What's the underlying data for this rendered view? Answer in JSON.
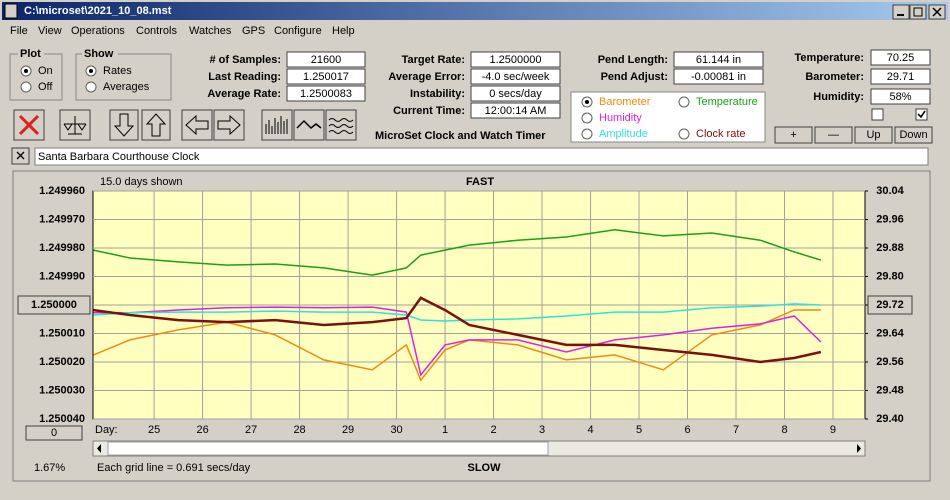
{
  "window": {
    "title": "C:\\microset\\2021_10_08.mst"
  },
  "menu": [
    "File",
    "View",
    "Operations",
    "Controls",
    "Watches",
    "GPS",
    "Configure",
    "Help"
  ],
  "plot": {
    "title": "Plot",
    "options": [
      "On",
      "Off"
    ],
    "selected": 0
  },
  "show": {
    "title": "Show",
    "options": [
      "Rates",
      "Averages"
    ],
    "selected": 0
  },
  "fields": [
    {
      "label": "# of Samples:",
      "value": "21600"
    },
    {
      "label": "Last Reading:",
      "value": "1.250017"
    },
    {
      "label": "Average Rate:",
      "value": "1.2500083"
    },
    {
      "label": "Target Rate:",
      "value": "1.2500000"
    },
    {
      "label": "Average Error:",
      "value": "-4.0 sec/week"
    },
    {
      "label": "Instability:",
      "value": "0 secs/day"
    },
    {
      "label": "Current Time:",
      "value": "12:00:14 AM"
    },
    {
      "label": "Pend Length:",
      "value": "61.144 in"
    },
    {
      "label": "Pend Adjust:",
      "value": "-0.00081 in"
    },
    {
      "label": "Temperature:",
      "value": "70.25"
    },
    {
      "label": "Barometer:",
      "value": "29.71"
    },
    {
      "label": "Humidity:",
      "value": "58%"
    }
  ],
  "app_name": "MicroSet Clock and Watch Timer",
  "checks": [
    false,
    true
  ],
  "buttons": [
    "+",
    "—",
    "Up",
    "Down"
  ],
  "clock_name": "Santa Barbara Courthouse Clock",
  "chart_data": {
    "type": "line",
    "days_shown": "15.0 days shown",
    "top_label": "FAST",
    "bottom_label": "SLOW",
    "grid_note": "Each grid line = 0.691 secs/day",
    "status": "1.67%",
    "x_label": "Day:",
    "scroll_value": "0",
    "selected_series": 0,
    "grid": true,
    "xlim": [
      23.74,
      39.66
    ],
    "xticks": [
      {
        "value": 25,
        "label": "25"
      },
      {
        "value": 26,
        "label": "26"
      },
      {
        "value": 27,
        "label": "27"
      },
      {
        "value": 28,
        "label": "28"
      },
      {
        "value": 29,
        "label": "29"
      },
      {
        "value": 30,
        "label": "30"
      },
      {
        "value": 31,
        "label": "1"
      },
      {
        "value": 32,
        "label": "2"
      },
      {
        "value": 33,
        "label": "3"
      },
      {
        "value": 34,
        "label": "4"
      },
      {
        "value": 35,
        "label": "5"
      },
      {
        "value": 36,
        "label": "6"
      },
      {
        "value": 37,
        "label": "7"
      },
      {
        "value": 38,
        "label": "8"
      },
      {
        "value": 39,
        "label": "9"
      }
    ],
    "ylim": [
      1.25004,
      1.24996
    ],
    "yticks": [
      {
        "value": 1.24996,
        "label": "1.249960"
      },
      {
        "value": 1.24997,
        "label": "1.249970"
      },
      {
        "value": 1.24998,
        "label": "1.249980"
      },
      {
        "value": 1.24999,
        "label": "1.249990"
      },
      {
        "value": 1.25,
        "label": "1.250000"
      },
      {
        "value": 1.25001,
        "label": "1.250010"
      },
      {
        "value": 1.25002,
        "label": "1.250020"
      },
      {
        "value": 1.25003,
        "label": "1.250030"
      },
      {
        "value": 1.25004,
        "label": "1.250040"
      }
    ],
    "y2lim": [
      29.4,
      30.04
    ],
    "y2ticks": [
      30.04,
      29.96,
      29.88,
      {
        "value": 29.8,
        "label": "29.80"
      },
      29.72,
      29.64,
      29.56,
      29.48,
      {
        "value": 29.4,
        "label": "29.40"
      }
    ],
    "x": [
      23.75,
      24.5,
      25.5,
      26.5,
      27.5,
      28.5,
      29.5,
      30.2,
      30.5,
      31,
      31.5,
      32.5,
      33.5,
      34.5,
      35.5,
      36.5,
      37.5,
      38.2,
      38.75
    ],
    "series": [
      {
        "name": "Barometer",
        "color": "#f08a10",
        "axis": "y2",
        "values": [
          29.58,
          29.622,
          29.65,
          29.672,
          29.636,
          29.566,
          29.538,
          29.608,
          29.509,
          29.594,
          29.622,
          29.608,
          29.566,
          29.58,
          29.538,
          29.636,
          29.664,
          29.706,
          29.706
        ]
      },
      {
        "name": "Temperature",
        "color": "#1aa01a",
        "axis": "y2",
        "values": [
          29.874,
          29.852,
          29.841,
          29.832,
          29.835,
          29.824,
          29.804,
          29.824,
          29.86,
          29.874,
          29.888,
          29.902,
          29.911,
          29.931,
          29.914,
          29.922,
          29.902,
          29.869,
          29.846
        ]
      },
      {
        "name": "Humidity",
        "color": "#e020e0",
        "axis": "y2",
        "values": [
          29.698,
          29.698,
          29.706,
          29.712,
          29.714,
          29.712,
          29.714,
          29.7,
          29.524,
          29.608,
          29.622,
          29.622,
          29.588,
          29.622,
          29.636,
          29.655,
          29.667,
          29.689,
          29.616
        ]
      },
      {
        "name": "Amplitude",
        "color": "#30e0e0",
        "axis": "y2",
        "values": [
          29.692,
          29.698,
          29.7,
          29.7,
          29.703,
          29.7,
          29.7,
          29.692,
          29.678,
          29.675,
          29.678,
          29.681,
          29.689,
          29.7,
          29.7,
          29.712,
          29.717,
          29.723,
          29.72
        ]
      },
      {
        "name": "Clock rate",
        "color": "#7a1010",
        "axis": "y",
        "values": [
          1.2500018,
          1.2500035,
          1.2500053,
          1.250006,
          1.2500053,
          1.250007,
          1.250006,
          1.2500046,
          1.2499975,
          1.2500018,
          1.250007,
          1.2500105,
          1.250014,
          1.250014,
          1.2500158,
          1.2500175,
          1.25002,
          1.2500186,
          1.2500165
        ]
      }
    ]
  }
}
